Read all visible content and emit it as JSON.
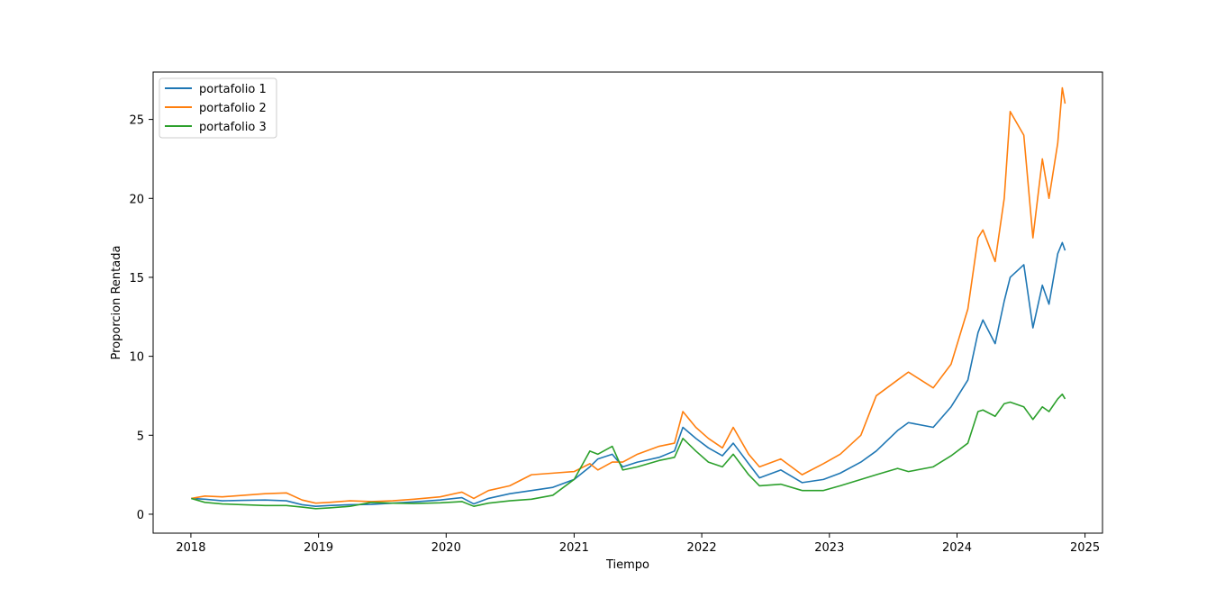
{
  "chart_data": {
    "type": "line",
    "title": "",
    "xlabel": "Tiempo",
    "ylabel": "Proporcion Rentada",
    "x_ticks": [
      "2018",
      "2019",
      "2020",
      "2021",
      "2022",
      "2023",
      "2024",
      "2025"
    ],
    "y_ticks": [
      "0",
      "5",
      "10",
      "15",
      "20",
      "25"
    ],
    "xlim": [
      "2017-09-15",
      "2025-02-20"
    ],
    "ylim": [
      -1.2,
      28.0
    ],
    "grid": false,
    "legend_position": "upper-left",
    "series": [
      {
        "name": "portafolio 1",
        "color": "#1f77b4",
        "points": [
          [
            "2018-01-02",
            1.0
          ],
          [
            "2018-02-10",
            0.95
          ],
          [
            "2018-04-01",
            0.85
          ],
          [
            "2018-06-01",
            0.88
          ],
          [
            "2018-08-01",
            0.9
          ],
          [
            "2018-10-01",
            0.85
          ],
          [
            "2018-11-15",
            0.6
          ],
          [
            "2018-12-24",
            0.5
          ],
          [
            "2019-02-01",
            0.55
          ],
          [
            "2019-04-01",
            0.6
          ],
          [
            "2019-06-01",
            0.62
          ],
          [
            "2019-08-01",
            0.7
          ],
          [
            "2019-10-01",
            0.78
          ],
          [
            "2019-12-15",
            0.9
          ],
          [
            "2020-02-15",
            1.05
          ],
          [
            "2020-03-20",
            0.65
          ],
          [
            "2020-05-01",
            1.0
          ],
          [
            "2020-07-01",
            1.3
          ],
          [
            "2020-09-01",
            1.5
          ],
          [
            "2020-11-01",
            1.7
          ],
          [
            "2021-01-01",
            2.2
          ],
          [
            "2021-02-15",
            3.0
          ],
          [
            "2021-03-10",
            3.5
          ],
          [
            "2021-04-20",
            3.8
          ],
          [
            "2021-05-20",
            3.0
          ],
          [
            "2021-07-01",
            3.3
          ],
          [
            "2021-09-01",
            3.6
          ],
          [
            "2021-10-15",
            4.0
          ],
          [
            "2021-11-08",
            5.5
          ],
          [
            "2021-12-15",
            4.8
          ],
          [
            "2022-01-20",
            4.2
          ],
          [
            "2022-03-01",
            3.7
          ],
          [
            "2022-04-01",
            4.5
          ],
          [
            "2022-05-15",
            3.2
          ],
          [
            "2022-06-15",
            2.3
          ],
          [
            "2022-08-15",
            2.8
          ],
          [
            "2022-10-15",
            2.0
          ],
          [
            "2022-12-15",
            2.2
          ],
          [
            "2023-02-01",
            2.6
          ],
          [
            "2023-04-01",
            3.3
          ],
          [
            "2023-05-15",
            4.0
          ],
          [
            "2023-07-15",
            5.3
          ],
          [
            "2023-08-15",
            5.8
          ],
          [
            "2023-10-25",
            5.5
          ],
          [
            "2023-12-15",
            6.8
          ],
          [
            "2024-02-01",
            8.5
          ],
          [
            "2024-03-01",
            11.5
          ],
          [
            "2024-03-15",
            12.3
          ],
          [
            "2024-04-19",
            10.8
          ],
          [
            "2024-05-15",
            13.5
          ],
          [
            "2024-06-01",
            15.0
          ],
          [
            "2024-07-10",
            15.8
          ],
          [
            "2024-08-05",
            11.8
          ],
          [
            "2024-09-01",
            14.5
          ],
          [
            "2024-09-20",
            13.3
          ],
          [
            "2024-10-15",
            16.5
          ],
          [
            "2024-10-28",
            17.2
          ],
          [
            "2024-11-05",
            16.7
          ]
        ]
      },
      {
        "name": "portafolio 2",
        "color": "#ff7f0e",
        "points": [
          [
            "2018-01-02",
            1.0
          ],
          [
            "2018-02-10",
            1.15
          ],
          [
            "2018-04-01",
            1.1
          ],
          [
            "2018-06-01",
            1.2
          ],
          [
            "2018-08-01",
            1.3
          ],
          [
            "2018-10-01",
            1.35
          ],
          [
            "2018-11-15",
            0.9
          ],
          [
            "2018-12-24",
            0.7
          ],
          [
            "2019-02-01",
            0.75
          ],
          [
            "2019-04-01",
            0.85
          ],
          [
            "2019-06-01",
            0.8
          ],
          [
            "2019-08-01",
            0.85
          ],
          [
            "2019-10-01",
            0.95
          ],
          [
            "2019-12-15",
            1.1
          ],
          [
            "2020-02-15",
            1.4
          ],
          [
            "2020-03-20",
            1.0
          ],
          [
            "2020-05-01",
            1.5
          ],
          [
            "2020-07-01",
            1.8
          ],
          [
            "2020-09-01",
            2.5
          ],
          [
            "2020-11-01",
            2.6
          ],
          [
            "2021-01-01",
            2.7
          ],
          [
            "2021-02-15",
            3.2
          ],
          [
            "2021-03-10",
            2.8
          ],
          [
            "2021-04-20",
            3.3
          ],
          [
            "2021-05-20",
            3.3
          ],
          [
            "2021-07-01",
            3.8
          ],
          [
            "2021-09-01",
            4.3
          ],
          [
            "2021-10-15",
            4.5
          ],
          [
            "2021-11-08",
            6.5
          ],
          [
            "2021-12-15",
            5.5
          ],
          [
            "2022-01-20",
            4.8
          ],
          [
            "2022-03-01",
            4.2
          ],
          [
            "2022-04-01",
            5.5
          ],
          [
            "2022-05-15",
            3.8
          ],
          [
            "2022-06-15",
            3.0
          ],
          [
            "2022-08-15",
            3.5
          ],
          [
            "2022-10-15",
            2.5
          ],
          [
            "2022-12-15",
            3.2
          ],
          [
            "2023-02-01",
            3.8
          ],
          [
            "2023-04-01",
            5.0
          ],
          [
            "2023-05-15",
            7.5
          ],
          [
            "2023-07-15",
            8.5
          ],
          [
            "2023-08-15",
            9.0
          ],
          [
            "2023-10-25",
            8.0
          ],
          [
            "2023-12-15",
            9.5
          ],
          [
            "2024-02-01",
            13.0
          ],
          [
            "2024-03-01",
            17.5
          ],
          [
            "2024-03-15",
            18.0
          ],
          [
            "2024-04-19",
            16.0
          ],
          [
            "2024-05-15",
            20.0
          ],
          [
            "2024-06-01",
            25.5
          ],
          [
            "2024-07-10",
            24.0
          ],
          [
            "2024-08-05",
            17.5
          ],
          [
            "2024-09-01",
            22.5
          ],
          [
            "2024-09-20",
            20.0
          ],
          [
            "2024-10-15",
            23.5
          ],
          [
            "2024-10-28",
            27.0
          ],
          [
            "2024-11-05",
            26.0
          ]
        ]
      },
      {
        "name": "portafolio 3",
        "color": "#2ca02c",
        "points": [
          [
            "2018-01-02",
            1.0
          ],
          [
            "2018-02-10",
            0.75
          ],
          [
            "2018-04-01",
            0.65
          ],
          [
            "2018-06-01",
            0.6
          ],
          [
            "2018-08-01",
            0.55
          ],
          [
            "2018-10-01",
            0.55
          ],
          [
            "2018-11-15",
            0.45
          ],
          [
            "2018-12-24",
            0.35
          ],
          [
            "2019-02-01",
            0.4
          ],
          [
            "2019-04-01",
            0.5
          ],
          [
            "2019-06-01",
            0.75
          ],
          [
            "2019-08-01",
            0.7
          ],
          [
            "2019-10-01",
            0.68
          ],
          [
            "2019-12-15",
            0.72
          ],
          [
            "2020-02-15",
            0.8
          ],
          [
            "2020-03-20",
            0.5
          ],
          [
            "2020-05-01",
            0.7
          ],
          [
            "2020-07-01",
            0.85
          ],
          [
            "2020-09-01",
            0.95
          ],
          [
            "2020-11-01",
            1.2
          ],
          [
            "2021-01-01",
            2.2
          ],
          [
            "2021-02-15",
            4.0
          ],
          [
            "2021-03-10",
            3.8
          ],
          [
            "2021-04-20",
            4.3
          ],
          [
            "2021-05-20",
            2.8
          ],
          [
            "2021-07-01",
            3.0
          ],
          [
            "2021-09-01",
            3.4
          ],
          [
            "2021-10-15",
            3.6
          ],
          [
            "2021-11-08",
            4.8
          ],
          [
            "2021-12-15",
            4.0
          ],
          [
            "2022-01-20",
            3.3
          ],
          [
            "2022-03-01",
            3.0
          ],
          [
            "2022-04-01",
            3.8
          ],
          [
            "2022-05-15",
            2.5
          ],
          [
            "2022-06-15",
            1.8
          ],
          [
            "2022-08-15",
            1.9
          ],
          [
            "2022-10-15",
            1.5
          ],
          [
            "2022-12-15",
            1.5
          ],
          [
            "2023-02-01",
            1.8
          ],
          [
            "2023-04-01",
            2.2
          ],
          [
            "2023-05-15",
            2.5
          ],
          [
            "2023-07-15",
            2.9
          ],
          [
            "2023-08-15",
            2.7
          ],
          [
            "2023-10-25",
            3.0
          ],
          [
            "2023-12-15",
            3.7
          ],
          [
            "2024-02-01",
            4.5
          ],
          [
            "2024-03-01",
            6.5
          ],
          [
            "2024-03-15",
            6.6
          ],
          [
            "2024-04-19",
            6.2
          ],
          [
            "2024-05-15",
            7.0
          ],
          [
            "2024-06-01",
            7.1
          ],
          [
            "2024-07-10",
            6.8
          ],
          [
            "2024-08-05",
            6.0
          ],
          [
            "2024-09-01",
            6.8
          ],
          [
            "2024-09-20",
            6.5
          ],
          [
            "2024-10-15",
            7.3
          ],
          [
            "2024-10-28",
            7.6
          ],
          [
            "2024-11-05",
            7.3
          ]
        ]
      }
    ]
  }
}
